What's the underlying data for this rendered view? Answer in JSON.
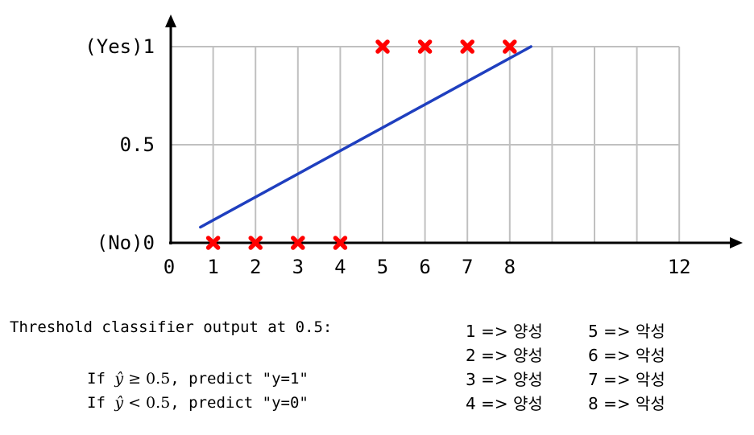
{
  "chart_data": {
    "type": "scatter",
    "x_ticks": [
      "0",
      "1",
      "2",
      "3",
      "4",
      "5",
      "6",
      "7",
      "8",
      "12"
    ],
    "y_ticks": [
      "(No)0",
      "0.5",
      "(Yes)1"
    ],
    "xlim": [
      0,
      12
    ],
    "ylim": [
      0,
      1
    ],
    "grid": true,
    "points": [
      {
        "x": 1,
        "y": 0
      },
      {
        "x": 2,
        "y": 0
      },
      {
        "x": 3,
        "y": 0
      },
      {
        "x": 4,
        "y": 0
      },
      {
        "x": 5,
        "y": 1
      },
      {
        "x": 6,
        "y": 1
      },
      {
        "x": 7,
        "y": 1
      },
      {
        "x": 8,
        "y": 1
      }
    ],
    "fit_line": {
      "x": [
        0.7,
        8.5
      ],
      "y": [
        0.08,
        1.0
      ]
    },
    "colors": {
      "points": "#ff0000",
      "line": "#1f3fbf",
      "grid": "#c0c0c0",
      "axis": "#000000"
    }
  },
  "notes": {
    "threshold": "Threshold classifier output at 0.5:",
    "rule1_prefix": "If ",
    "rule1_op": " ≥ 0.5",
    "rule1_suffix": ", predict \"y=1\"",
    "rule2_prefix": "If ",
    "rule2_op": " < 0.5",
    "rule2_suffix": ", predict \"y=0\"",
    "yhat": "ŷ"
  },
  "mapping_left": [
    "1 => 양성",
    "2 => 양성",
    "3 => 양성",
    "4 => 양성"
  ],
  "mapping_right": [
    "5 => 악성",
    "6 => 악성",
    "7 => 악성",
    "8 => 악성"
  ]
}
